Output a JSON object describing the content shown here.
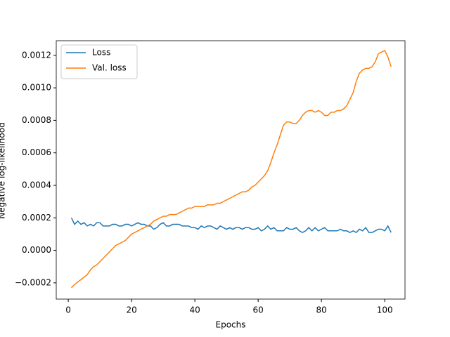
{
  "chart_data": {
    "type": "line",
    "xlabel": "Epochs",
    "ylabel": "Negative log-likelihood",
    "x": [
      1,
      2,
      3,
      4,
      5,
      6,
      7,
      8,
      9,
      10,
      11,
      12,
      13,
      14,
      15,
      16,
      17,
      18,
      19,
      20,
      21,
      22,
      23,
      24,
      25,
      26,
      27,
      28,
      29,
      30,
      31,
      32,
      33,
      34,
      35,
      36,
      37,
      38,
      39,
      40,
      41,
      42,
      43,
      44,
      45,
      46,
      47,
      48,
      49,
      50,
      51,
      52,
      53,
      54,
      55,
      56,
      57,
      58,
      59,
      60,
      61,
      62,
      63,
      64,
      65,
      66,
      67,
      68,
      69,
      70,
      71,
      72,
      73,
      74,
      75,
      76,
      77,
      78,
      79,
      80,
      81,
      82,
      83,
      84,
      85,
      86,
      87,
      88,
      89,
      90,
      91,
      92,
      93,
      94,
      95,
      96,
      97,
      98,
      99,
      100,
      101,
      102
    ],
    "series": [
      {
        "name": "Loss",
        "color": "#1f77b4",
        "values": [
          0.0002,
          0.00016,
          0.00018,
          0.00016,
          0.00017,
          0.00015,
          0.00016,
          0.00015,
          0.00017,
          0.00017,
          0.00015,
          0.00015,
          0.00015,
          0.00016,
          0.00016,
          0.00015,
          0.00015,
          0.00016,
          0.00016,
          0.00015,
          0.00016,
          0.00017,
          0.00016,
          0.00016,
          0.00015,
          0.00015,
          0.00013,
          0.00014,
          0.00016,
          0.00017,
          0.00015,
          0.00015,
          0.00016,
          0.00016,
          0.00016,
          0.00015,
          0.00015,
          0.00015,
          0.00014,
          0.00014,
          0.00013,
          0.00015,
          0.00014,
          0.00015,
          0.00015,
          0.00014,
          0.00013,
          0.00015,
          0.00014,
          0.00013,
          0.00014,
          0.00013,
          0.00014,
          0.00014,
          0.00013,
          0.00014,
          0.00014,
          0.00013,
          0.00013,
          0.00014,
          0.00012,
          0.00013,
          0.00015,
          0.00013,
          0.00014,
          0.00012,
          0.00012,
          0.00012,
          0.00014,
          0.00013,
          0.00013,
          0.00014,
          0.00012,
          0.00011,
          0.00012,
          0.00014,
          0.00012,
          0.00014,
          0.00012,
          0.00013,
          0.00014,
          0.00012,
          0.00012,
          0.00012,
          0.00012,
          0.00013,
          0.00012,
          0.00012,
          0.00011,
          0.00012,
          0.00011,
          0.00013,
          0.00012,
          0.00014,
          0.00011,
          0.00011,
          0.00012,
          0.00013,
          0.00013,
          0.00012,
          0.00015,
          0.00011
        ]
      },
      {
        "name": "Val. loss",
        "color": "#ff7f0e",
        "values": [
          -0.00023,
          -0.00021,
          -0.000195,
          -0.00018,
          -0.000165,
          -0.00015,
          -0.00012,
          -0.0001,
          -9e-05,
          -7e-05,
          -5e-05,
          -3e-05,
          -1e-05,
          1e-05,
          3e-05,
          4e-05,
          5e-05,
          6e-05,
          8e-05,
          0.0001,
          0.00011,
          0.00012,
          0.00013,
          0.00014,
          0.00015,
          0.00016,
          0.00018,
          0.00019,
          0.0002,
          0.00021,
          0.00021,
          0.00022,
          0.00022,
          0.00022,
          0.00023,
          0.00024,
          0.00025,
          0.00026,
          0.00026,
          0.00027,
          0.00027,
          0.00027,
          0.00027,
          0.00028,
          0.00028,
          0.00028,
          0.00029,
          0.00029,
          0.0003,
          0.00031,
          0.00032,
          0.00033,
          0.00034,
          0.00035,
          0.00036,
          0.00036,
          0.00037,
          0.00039,
          0.0004,
          0.00042,
          0.00044,
          0.00046,
          0.00049,
          0.00054,
          0.0006,
          0.00065,
          0.00071,
          0.00077,
          0.00079,
          0.00079,
          0.00078,
          0.00078,
          0.0008,
          0.00083,
          0.00085,
          0.00086,
          0.00086,
          0.00085,
          0.00086,
          0.00085,
          0.00083,
          0.00083,
          0.00085,
          0.00085,
          0.00086,
          0.00086,
          0.00087,
          0.00089,
          0.00093,
          0.00097,
          0.00104,
          0.00109,
          0.00111,
          0.00112,
          0.00112,
          0.00113,
          0.00116,
          0.00121,
          0.00122,
          0.00123,
          0.00119,
          0.00113
        ]
      }
    ],
    "xlim": [
      -3.8,
      106.4
    ],
    "xticks": [
      0,
      20,
      40,
      60,
      80,
      100
    ],
    "ylim": [
      -0.0003,
      0.00129
    ],
    "yticks": [
      {
        "value": -0.0002,
        "label": "−0.0002"
      },
      {
        "value": 0,
        "label": "0.0000"
      },
      {
        "value": 0.0002,
        "label": "0.0002"
      },
      {
        "value": 0.0004,
        "label": "0.0004"
      },
      {
        "value": 0.0006,
        "label": "0.0006"
      },
      {
        "value": 0.0008,
        "label": "0.0008"
      },
      {
        "value": 0.001,
        "label": "0.0010"
      },
      {
        "value": 0.0012,
        "label": "0.0012"
      }
    ],
    "grid": false,
    "legend": "upper left"
  }
}
